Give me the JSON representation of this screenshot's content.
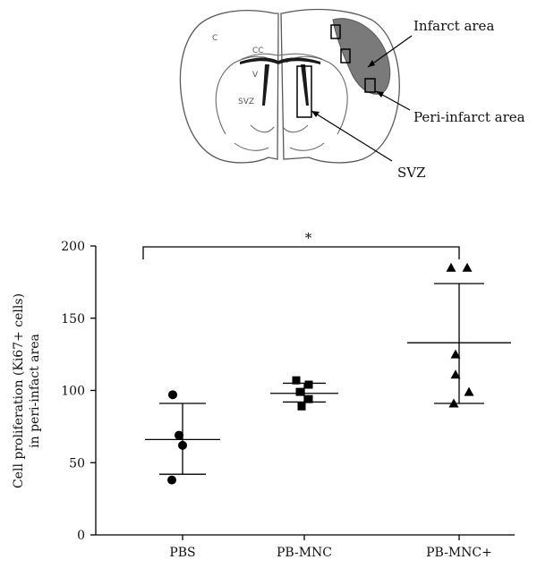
{
  "diagram": {
    "labels": {
      "infarct_area": "Infarct area",
      "peri_infarct_area": "Peri-infarct area",
      "svz": "SVZ"
    },
    "brain_labels": {
      "cortex": "C",
      "corpus_callosum": "CC",
      "ventricle": "V",
      "svz": "SVZ"
    }
  },
  "chart_data": {
    "type": "scatter",
    "ylabel_line1": "Cell proliferation (Ki67+ cells)",
    "ylabel_line2": "in peri-infact area",
    "xlabel": "",
    "categories": [
      "PBS",
      "PB-MNC",
      "PB-MNC+"
    ],
    "ylim": [
      0,
      200
    ],
    "yticks": [
      0,
      50,
      100,
      150,
      200
    ],
    "series": [
      {
        "category": "PBS",
        "marker": "circle",
        "points": [
          97,
          69,
          62,
          38
        ],
        "mean": 66,
        "error_low": 42,
        "error_high": 91
      },
      {
        "category": "PB-MNC",
        "marker": "square",
        "points": [
          107,
          104,
          99,
          94,
          89
        ],
        "mean": 98,
        "error_low": 92,
        "error_high": 105
      },
      {
        "category": "PB-MNC+",
        "marker": "triangle",
        "points": [
          185,
          185,
          125,
          111,
          99,
          91
        ],
        "mean": 133,
        "error_low": 91,
        "error_high": 174
      }
    ],
    "significance": {
      "from": "PBS",
      "to": "PB-MNC+",
      "label": "*"
    }
  }
}
